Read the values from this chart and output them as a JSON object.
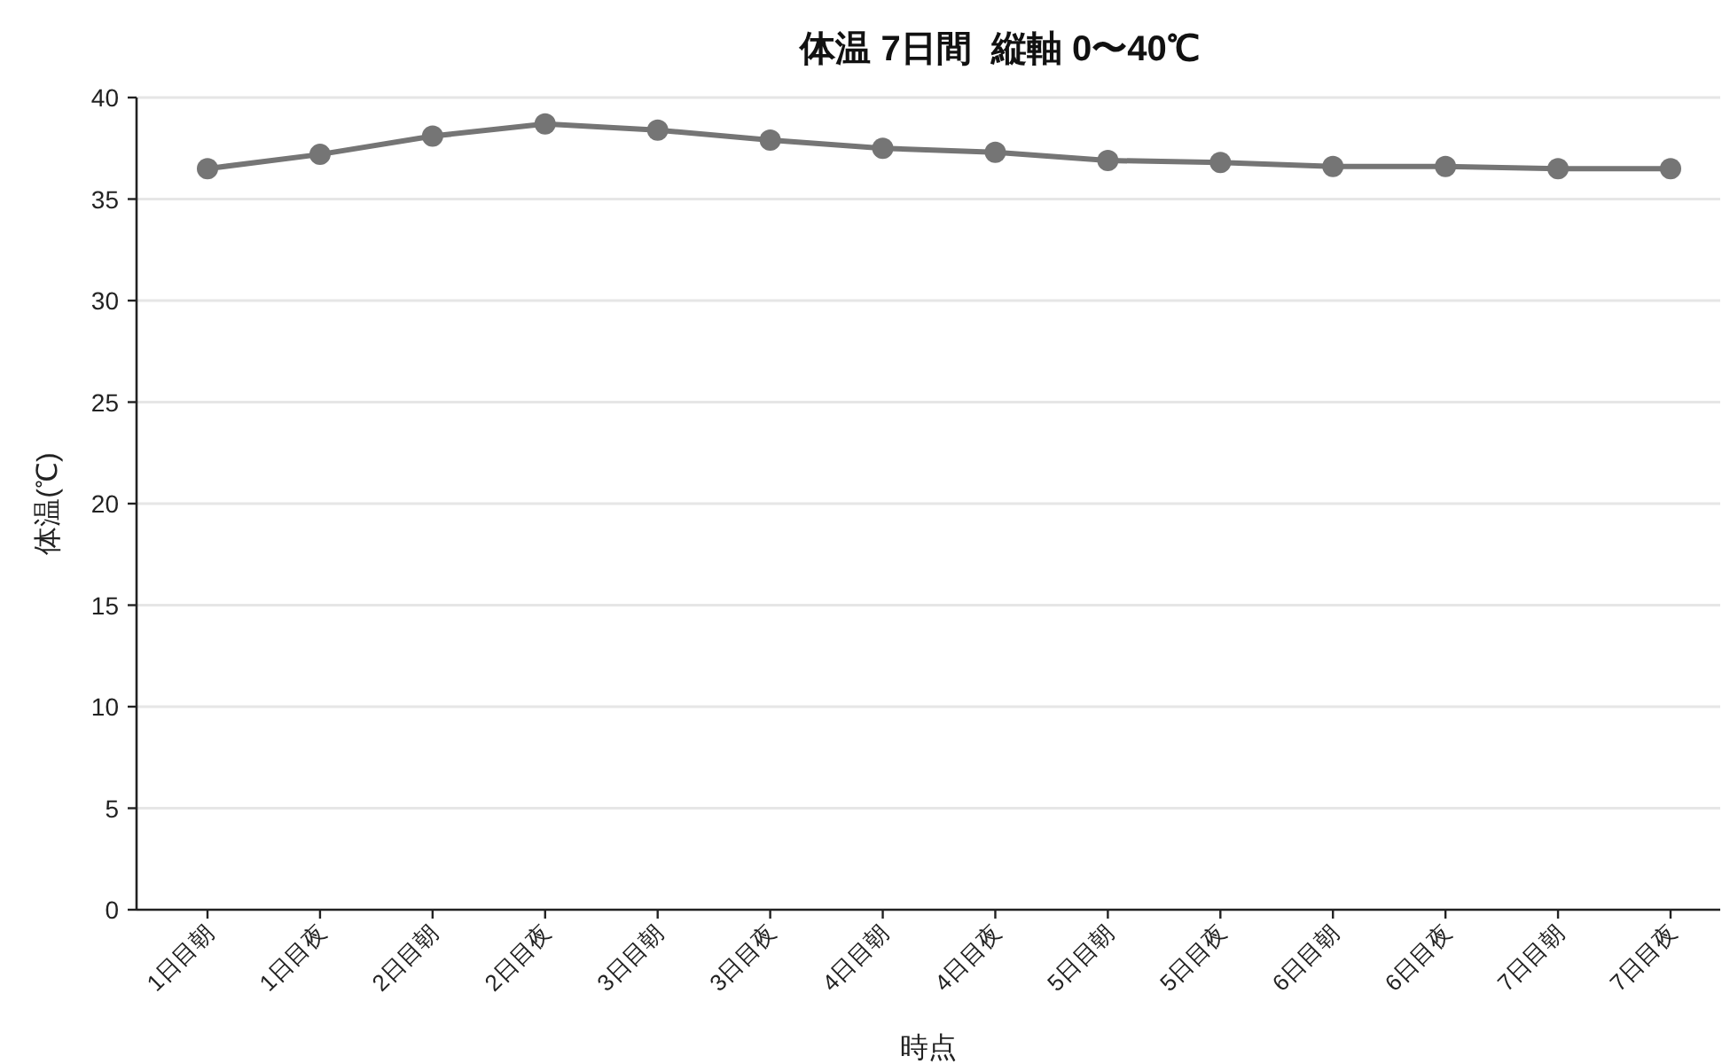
{
  "chart_data": {
    "type": "line",
    "title": "体温 7日間  縦軸 0〜40℃",
    "xlabel": "時点",
    "ylabel": "体温(℃)",
    "categories": [
      "1日目朝",
      "1日目夜",
      "2日目朝",
      "2日目夜",
      "3日目朝",
      "3日目夜",
      "4日目朝",
      "4日目夜",
      "5日目朝",
      "5日目夜",
      "6日目朝",
      "6日目夜",
      "7日目朝",
      "7日目夜"
    ],
    "series": [
      {
        "color": "#757575",
        "values": [
          36.5,
          37.2,
          38.1,
          38.7,
          38.4,
          37.9,
          37.5,
          37.3,
          36.9,
          36.8,
          36.6,
          36.6,
          36.5,
          36.5
        ]
      }
    ],
    "ylim": [
      0,
      40
    ],
    "yticks": [
      0,
      5,
      10,
      15,
      20,
      25,
      30,
      35,
      40
    ],
    "grid": "y",
    "marker": "circle",
    "line_style": "solid"
  }
}
